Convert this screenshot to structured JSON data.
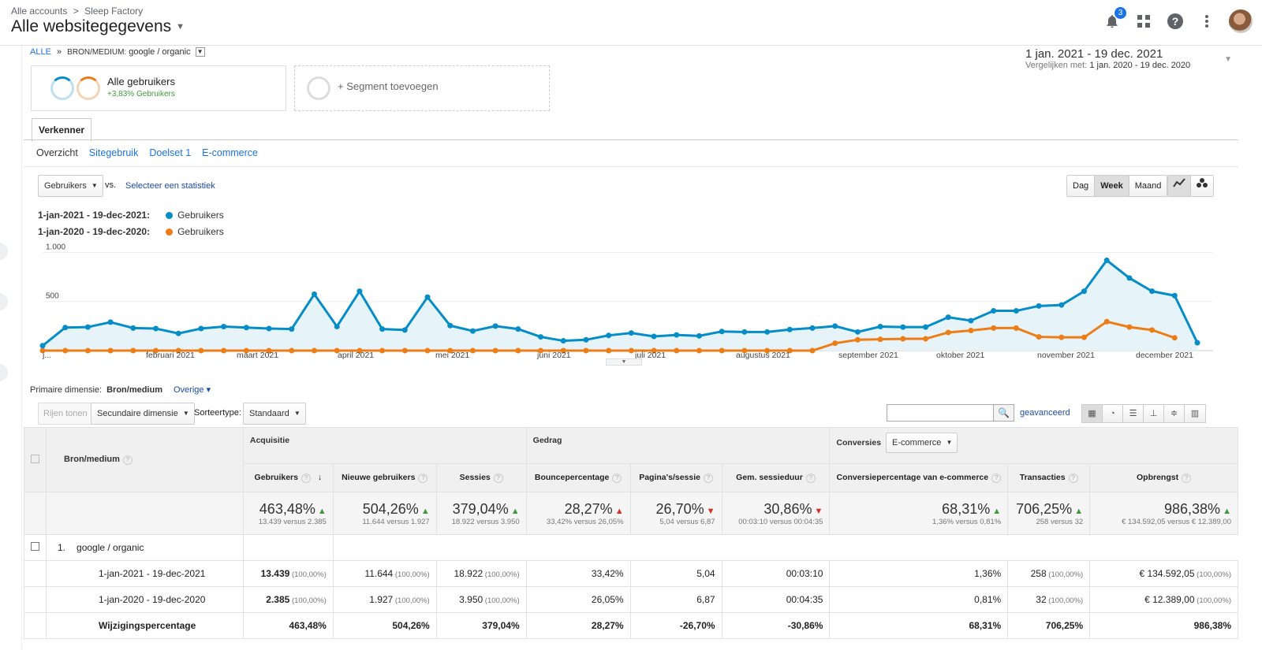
{
  "header": {
    "breadcrumb": [
      "Alle accounts",
      ">",
      "Sleep Factory"
    ],
    "view_title": "Alle websitegegevens",
    "notification_count": "3"
  },
  "segment_crumb": {
    "all": "ALLE",
    "sep": "»",
    "dim": "BRON/MEDIUM:",
    "value": "google / organic"
  },
  "date_range": {
    "main": "1 jan. 2021 - 19 dec. 2021",
    "compare_label": "Vergelijken met:",
    "compare_value": "1 jan. 2020 - 19 dec. 2020"
  },
  "segments": {
    "all_users": "Alle gebruikers",
    "all_users_sub": "+3,83% Gebruikers",
    "add": "+ Segment toevoegen"
  },
  "tabs": {
    "explorer": "Verkenner",
    "subtabs": [
      "Overzicht",
      "Sitegebruik",
      "Doelset 1",
      "E-commerce"
    ]
  },
  "chart_controls": {
    "metric": "Gebruikers",
    "vs": "vs.",
    "select_metric": "Selecteer een statistiek",
    "periods": [
      "Dag",
      "Week",
      "Maand"
    ],
    "active_period": "Week"
  },
  "legend": [
    {
      "range": "1-jan-2021 - 19-dec-2021:",
      "name": "Gebruikers",
      "color": "#058dc7"
    },
    {
      "range": "1-jan-2020 - 19-dec-2020:",
      "name": "Gebruikers",
      "color": "#ed7e17"
    }
  ],
  "chart_data": {
    "type": "line",
    "y_ticks": [
      "1.000",
      "500"
    ],
    "ylim": [
      0,
      1100
    ],
    "x_labels": [
      "j...",
      "februari 2021",
      "maart 2021",
      "april 2021",
      "mei 2021",
      "juni 2021",
      "juli 2021",
      "augustus 2021",
      "september 2021",
      "oktober 2021",
      "november 2021",
      "december 2021"
    ],
    "series": [
      {
        "name": "Gebruikers",
        "color": "#058dc7",
        "values": [
          50,
          235,
          240,
          290,
          230,
          225,
          175,
          225,
          245,
          235,
          225,
          220,
          575,
          245,
          605,
          220,
          210,
          545,
          255,
          200,
          250,
          220,
          140,
          100,
          110,
          155,
          180,
          145,
          160,
          150,
          195,
          190,
          190,
          215,
          230,
          250,
          190,
          245,
          240,
          240,
          340,
          305,
          405,
          405,
          455,
          465,
          605,
          920,
          740,
          605,
          560,
          80
        ]
      },
      {
        "name": "Gebruikers",
        "color": "#ed7e17",
        "values": [
          0,
          0,
          0,
          0,
          0,
          0,
          0,
          0,
          0,
          0,
          0,
          0,
          0,
          0,
          0,
          0,
          0,
          0,
          0,
          0,
          0,
          0,
          0,
          0,
          0,
          0,
          0,
          0,
          0,
          0,
          0,
          0,
          0,
          0,
          0,
          75,
          110,
          115,
          120,
          120,
          185,
          205,
          230,
          230,
          140,
          135,
          135,
          295,
          240,
          210,
          130
        ]
      }
    ]
  },
  "primary_dimension": {
    "label": "Primaire dimensie:",
    "value": "Bron/medium",
    "other": "Overige"
  },
  "table_toolbar": {
    "rows_btn": "Rijen tonen",
    "secondary": "Secundaire dimensie",
    "sort_label": "Sorteertype:",
    "sort_value": "Standaard",
    "advanced": "geavanceerd"
  },
  "table": {
    "dim_header": "Bron/medium",
    "groups": {
      "acq": "Acquisitie",
      "beh": "Gedrag",
      "conv": "Conversies",
      "conv_select": "E-commerce"
    },
    "columns": [
      "Gebruikers",
      "Nieuwe gebruikers",
      "Sessies",
      "Bouncepercentage",
      "Pagina's/sessie",
      "Gem. sessieduur",
      "Conversiepercentage van e-commerce",
      "Transacties",
      "Opbrengst"
    ],
    "totals": [
      {
        "big": "463,48%",
        "dir": "up",
        "sub": "13.439 versus 2.385"
      },
      {
        "big": "504,26%",
        "dir": "up",
        "sub": "11.644 versus 1.927"
      },
      {
        "big": "379,04%",
        "dir": "up",
        "sub": "18.922 versus 3.950"
      },
      {
        "big": "28,27%",
        "dir": "up-red",
        "sub": "33,42% versus 26,05%"
      },
      {
        "big": "26,70%",
        "dir": "down",
        "sub": "5,04 versus 6,87"
      },
      {
        "big": "30,86%",
        "dir": "down",
        "sub": "00:03:10 versus 00:04:35"
      },
      {
        "big": "68,31%",
        "dir": "up",
        "sub": "1,36% versus 0,81%"
      },
      {
        "big": "706,25%",
        "dir": "up",
        "sub": "258 versus 32"
      },
      {
        "big": "986,38%",
        "dir": "up",
        "sub": "€ 134.592,05 versus € 12.389,00"
      }
    ],
    "row_index": "1.",
    "row_label": "google / organic",
    "rows": [
      {
        "label": "1-jan-2021 - 19-dec-2021",
        "cells": [
          [
            "13.439",
            "(100,00%)"
          ],
          [
            "11.644",
            "(100,00%)"
          ],
          [
            "18.922",
            "(100,00%)"
          ],
          [
            "33,42%",
            ""
          ],
          [
            "5,04",
            ""
          ],
          [
            "00:03:10",
            ""
          ],
          [
            "1,36%",
            ""
          ],
          [
            "258",
            "(100,00%)"
          ],
          [
            "€ 134.592,05",
            "(100,00%)"
          ]
        ]
      },
      {
        "label": "1-jan-2020 - 19-dec-2020",
        "cells": [
          [
            "2.385",
            "(100,00%)"
          ],
          [
            "1.927",
            "(100,00%)"
          ],
          [
            "3.950",
            "(100,00%)"
          ],
          [
            "26,05%",
            ""
          ],
          [
            "6,87",
            ""
          ],
          [
            "00:04:35",
            ""
          ],
          [
            "0,81%",
            ""
          ],
          [
            "32",
            "(100,00%)"
          ],
          [
            "€ 12.389,00",
            "(100,00%)"
          ]
        ]
      },
      {
        "label": "Wijzigingspercentage",
        "cells": [
          [
            "463,48%",
            ""
          ],
          [
            "504,26%",
            ""
          ],
          [
            "379,04%",
            ""
          ],
          [
            "28,27%",
            ""
          ],
          [
            "-26,70%",
            ""
          ],
          [
            "-30,86%",
            ""
          ],
          [
            "68,31%",
            ""
          ],
          [
            "706,25%",
            ""
          ],
          [
            "986,38%",
            ""
          ]
        ]
      }
    ]
  }
}
